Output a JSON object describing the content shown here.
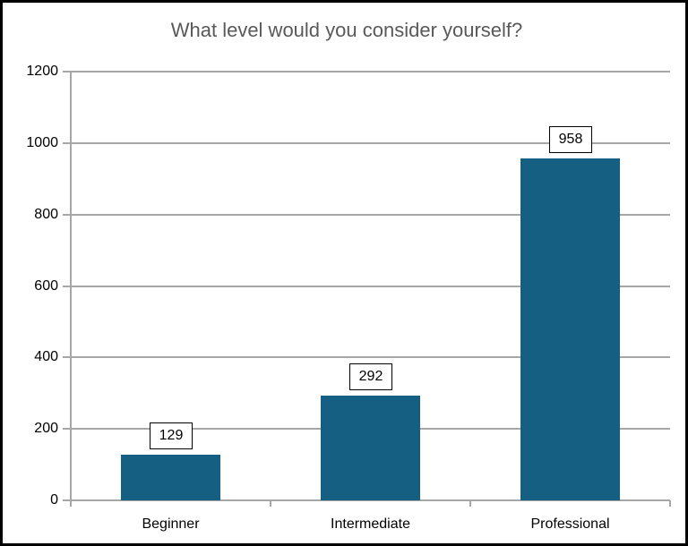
{
  "chart_data": {
    "type": "bar",
    "title": "What level would you consider yourself?",
    "categories": [
      "Beginner",
      "Intermediate",
      "Professional"
    ],
    "values": [
      129,
      292,
      958
    ],
    "data_labels": [
      "129",
      "292",
      "958"
    ],
    "xlabel": "",
    "ylabel": "",
    "ylim": [
      0,
      1200
    ],
    "yticks": [
      0,
      200,
      400,
      600,
      800,
      1000,
      1200
    ],
    "grid": "horizontal",
    "legend": "none",
    "colors": {
      "bar": "#156082",
      "gridline": "#a6a6a6",
      "axis": "#a6a6a6",
      "title": "#595959",
      "tick_label": "#000000",
      "data_label_fill": "#ffffff",
      "data_label_border": "#000000",
      "frame_border": "#000000"
    }
  }
}
